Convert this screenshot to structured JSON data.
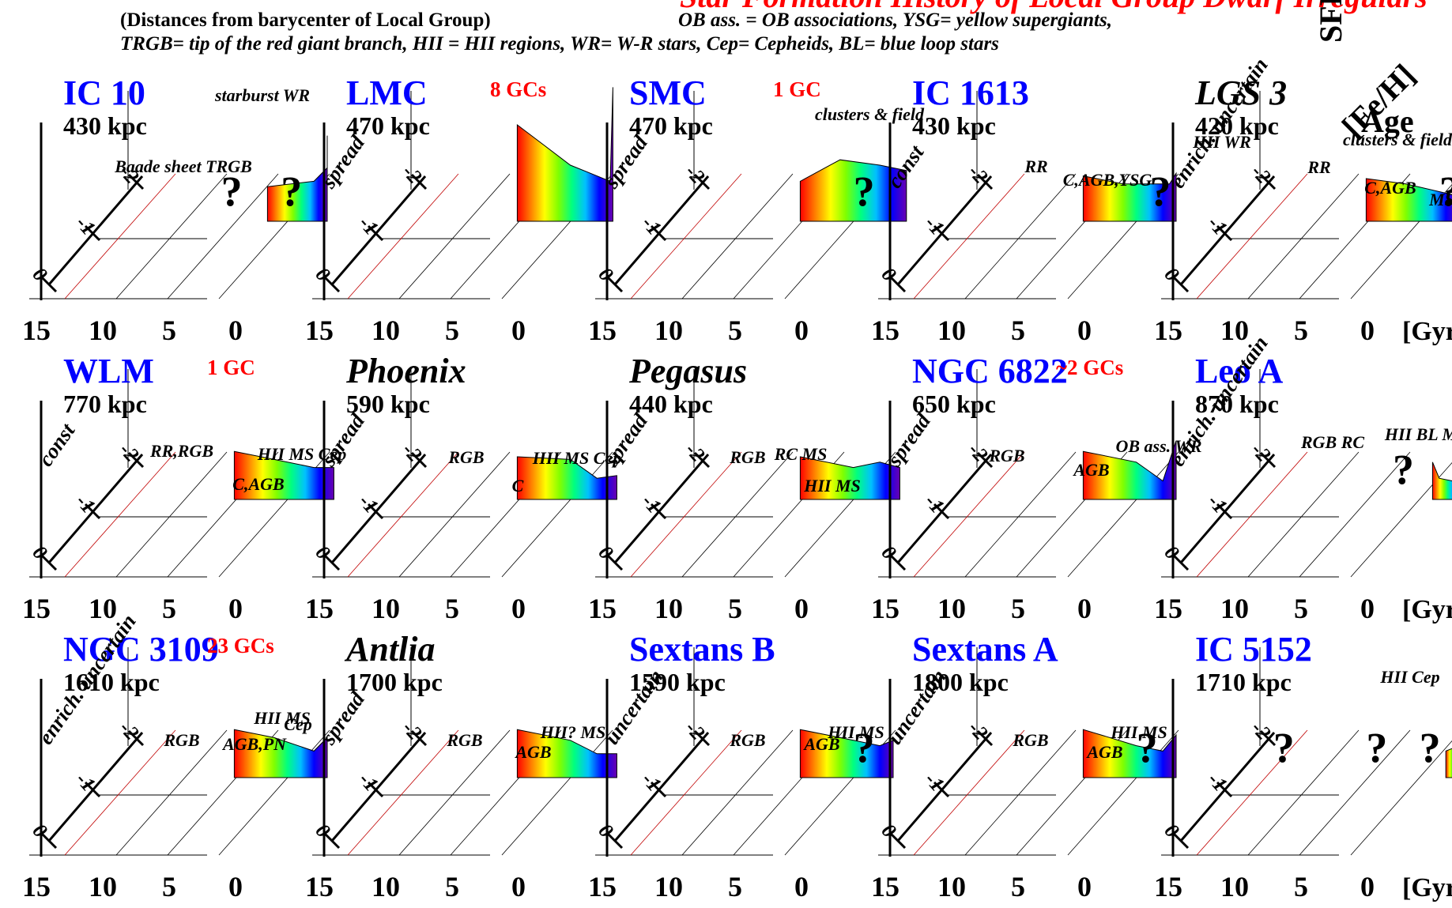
{
  "header": {
    "title": "Star Formation History of Local Group Dwarf Irregulars",
    "subtitle": "(Distances from barycenter of Local Group)",
    "legend_line1": "OB ass. = OB associations, YSG= yellow supergiants,",
    "legend_line2": "TRGB= tip of the red giant branch, HII = HII regions, WR= W-R stars, Cep= Cepheids, BL= blue loop stars"
  },
  "axis_legend": {
    "sfr": "SFR",
    "feh": "[Fe/H]",
    "age": "Age"
  },
  "colors": {
    "name_blue": "#0000ff",
    "gc_red": "#ff0000",
    "text": "#000000"
  },
  "chart_data": [
    {
      "type": "area",
      "name": "IC 10",
      "name_color": "blue",
      "distance": "430 kpc",
      "gc": "",
      "zlabel": "",
      "annotations": [
        {
          "text": "starburst WR"
        },
        {
          "text": "Baade sheet TRGB"
        }
      ],
      "sfr": [
        {
          "x": 4.5,
          "y": 0.7
        },
        {
          "x": 1,
          "y": 0.9
        },
        {
          "x": 0,
          "y": 1.4
        },
        {
          "x": 0,
          "y": 2.6
        }
      ],
      "question_marks": [
        {
          "age": 8
        },
        {
          "age": 3.5
        }
      ],
      "feh_ticks": [
        "0",
        "-1",
        "-2"
      ],
      "age_ticks": [
        "15",
        "10",
        "5",
        "0"
      ],
      "age_unit": "",
      "xlim": [
        15,
        0
      ],
      "ylim": [
        0,
        3
      ]
    },
    {
      "type": "area",
      "name": "LMC",
      "name_color": "blue",
      "distance": "470 kpc",
      "gc": "8 GCs",
      "zlabel": "spread",
      "annotations": [
        {
          "text": "clusters & field"
        }
      ],
      "sfr": [
        {
          "x": 7,
          "y": 3.0
        },
        {
          "x": 3,
          "y": 1.5
        },
        {
          "x": 0,
          "y": 0.9
        },
        {
          "x": -0.2,
          "y": 4.4
        }
      ],
      "question_marks": [],
      "feh_ticks": [
        "0",
        "-1",
        "-2"
      ],
      "age_ticks": [
        "15",
        "10",
        "5",
        "0"
      ],
      "age_unit": "",
      "xlim": [
        15,
        0
      ],
      "ylim": [
        0,
        5
      ]
    },
    {
      "type": "area",
      "name": "SMC",
      "name_color": "blue",
      "distance": "470 kpc",
      "gc": "1 GC",
      "zlabel": "spread",
      "annotations": [
        {
          "text": "clusters & field"
        }
      ],
      "sfr": [
        {
          "x": 7,
          "y": 0.9
        },
        {
          "x": 4,
          "y": 1.7
        },
        {
          "x": 1,
          "y": 1.5
        },
        {
          "x": -1,
          "y": 1.3
        }
      ],
      "question_marks": [
        {
          "age": 3
        }
      ],
      "feh_ticks": [
        "0",
        "-1",
        "-2"
      ],
      "age_ticks": [
        "15",
        "10",
        "5",
        "0"
      ],
      "age_unit": "",
      "xlim": [
        15,
        0
      ],
      "ylim": [
        0,
        3
      ]
    },
    {
      "type": "area",
      "name": "IC 1613",
      "name_color": "blue",
      "distance": "430 kpc",
      "gc": "",
      "zlabel": "const",
      "annotations": [
        {
          "text": "RR"
        },
        {
          "text": "C,AGB,YSG"
        },
        {
          "text": "HII WR"
        }
      ],
      "sfr": [
        {
          "x": 7,
          "y": 1.1
        },
        {
          "x": 4,
          "y": 0.8
        },
        {
          "x": 0.5,
          "y": 0.8
        },
        {
          "x": 0,
          "y": 1.2
        }
      ],
      "question_marks": [
        {
          "age": 2
        }
      ],
      "feh_ticks": [
        "0",
        "-1",
        "-2"
      ],
      "age_ticks": [
        "15",
        "10",
        "5",
        "0"
      ],
      "age_unit": "",
      "xlim": [
        15,
        0
      ],
      "ylim": [
        0,
        3
      ]
    },
    {
      "type": "area",
      "name": "LGS 3",
      "name_color": "black",
      "distance": "420 kpc",
      "gc": "",
      "zlabel": "enrich. uncertain",
      "annotations": [
        {
          "text": "RR"
        },
        {
          "text": "C,AGB"
        },
        {
          "text": "MS"
        }
      ],
      "sfr": [
        {
          "x": 7,
          "y": 1.0
        },
        {
          "x": 4,
          "y": 0.8
        },
        {
          "x": 0.5,
          "y": 0.4
        },
        {
          "x": 0,
          "y": 0.2
        }
      ],
      "question_marks": [
        {
          "age": 1.5
        }
      ],
      "feh_ticks": [
        "0",
        "-1",
        "-2"
      ],
      "age_ticks": [
        "15",
        "10",
        "5",
        "0"
      ],
      "age_unit": "[Gyr]",
      "xlim": [
        15,
        0
      ],
      "ylim": [
        0,
        3
      ]
    },
    {
      "type": "area",
      "name": "WLM",
      "name_color": "blue",
      "distance": "770 kpc",
      "gc": "1 GC",
      "zlabel": "const",
      "annotations": [
        {
          "text": "RR,RGB"
        },
        {
          "text": "C,AGB"
        },
        {
          "text": "HII MS Cep"
        }
      ],
      "sfr": [
        {
          "x": 7,
          "y": 1.2
        },
        {
          "x": 3,
          "y": 0.8
        },
        {
          "x": 1,
          "y": 0.6
        },
        {
          "x": -0.5,
          "y": 0.6
        }
      ],
      "question_marks": [],
      "feh_ticks": [
        "0",
        "-1",
        "-2"
      ],
      "age_ticks": [
        "15",
        "10",
        "5",
        "0"
      ],
      "age_unit": "",
      "xlim": [
        15,
        0
      ],
      "ylim": [
        0,
        3
      ]
    },
    {
      "type": "area",
      "name": "Phoenix",
      "name_color": "black",
      "distance": "590 kpc",
      "gc": "",
      "zlabel": "spread",
      "annotations": [
        {
          "text": "RGB"
        },
        {
          "text": "C"
        },
        {
          "text": "HII MS Cep"
        }
      ],
      "sfr": [
        {
          "x": 7,
          "y": 1.0
        },
        {
          "x": 3,
          "y": 0.9
        },
        {
          "x": 1,
          "y": 0.2
        },
        {
          "x": -0.5,
          "y": 0.3
        }
      ],
      "question_marks": [],
      "feh_ticks": [
        "0",
        "-1",
        "-2"
      ],
      "age_ticks": [
        "15",
        "10",
        "5",
        "0"
      ],
      "age_unit": "",
      "xlim": [
        15,
        0
      ],
      "ylim": [
        0,
        3
      ]
    },
    {
      "type": "area",
      "name": "Pegasus",
      "name_color": "black",
      "distance": "440 kpc",
      "gc": "",
      "zlabel": "spread",
      "annotations": [
        {
          "text": "RGB"
        },
        {
          "text": "RC MS"
        },
        {
          "text": "HII MS"
        }
      ],
      "sfr": [
        {
          "x": 7,
          "y": 1.0
        },
        {
          "x": 3,
          "y": 0.6
        },
        {
          "x": 1,
          "y": 0.8
        },
        {
          "x": -0.5,
          "y": 0.6
        }
      ],
      "question_marks": [],
      "feh_ticks": [
        "0",
        "-1",
        "-2"
      ],
      "age_ticks": [
        "15",
        "10",
        "5",
        "0"
      ],
      "age_unit": "",
      "xlim": [
        15,
        0
      ],
      "ylim": [
        0,
        3
      ]
    },
    {
      "type": "area",
      "name": "NGC 6822",
      "name_color": "blue",
      "distance": "650 kpc",
      "gc": "~2 GCs",
      "zlabel": "spread",
      "annotations": [
        {
          "text": "RGB"
        },
        {
          "text": "AGB"
        },
        {
          "text": "OB ass. WR"
        }
      ],
      "sfr": [
        {
          "x": 7,
          "y": 1.2
        },
        {
          "x": 3,
          "y": 0.8
        },
        {
          "x": 1,
          "y": 0.1
        },
        {
          "x": 0,
          "y": 1.6
        }
      ],
      "question_marks": [],
      "feh_ticks": [
        "0",
        "-1",
        "-2"
      ],
      "age_ticks": [
        "15",
        "10",
        "5",
        "0"
      ],
      "age_unit": "",
      "xlim": [
        15,
        0
      ],
      "ylim": [
        0,
        3
      ]
    },
    {
      "type": "area",
      "name": "Leo A",
      "name_color": "blue",
      "distance": "870 kpc",
      "gc": "",
      "zlabel": "enrich. uncertain",
      "annotations": [
        {
          "text": "RGB RC"
        },
        {
          "text": "HII BL MS"
        }
      ],
      "sfr": [
        {
          "x": 2,
          "y": 0.8
        },
        {
          "x": 1.5,
          "y": 0.2
        },
        {
          "x": 0.5,
          "y": 0.1
        },
        {
          "x": 0,
          "y": 1.2
        }
      ],
      "question_marks": [
        {
          "age": 5
        }
      ],
      "feh_ticks": [
        "0",
        "-1",
        "-2"
      ],
      "age_ticks": [
        "15",
        "10",
        "5",
        "0"
      ],
      "age_unit": "[Gyr]",
      "xlim": [
        15,
        0
      ],
      "ylim": [
        0,
        3
      ]
    },
    {
      "type": "area",
      "name": "NGC 3109",
      "name_color": "blue",
      "distance": "1610 kpc",
      "gc": "23 GCs",
      "zlabel": "enrich. uncertain",
      "annotations": [
        {
          "text": "RGB"
        },
        {
          "text": "AGB,PN"
        },
        {
          "text": "Cep"
        },
        {
          "text": "HII MS"
        }
      ],
      "sfr": [
        {
          "x": 7,
          "y": 1.2
        },
        {
          "x": 4,
          "y": 0.9
        },
        {
          "x": 1,
          "y": 0.4
        },
        {
          "x": 0,
          "y": 0.9
        }
      ],
      "question_marks": [],
      "feh_ticks": [
        "0",
        "-1",
        "-2"
      ],
      "age_ticks": [
        "15",
        "10",
        "5",
        "0"
      ],
      "age_unit": "",
      "xlim": [
        15,
        0
      ],
      "ylim": [
        0,
        3
      ]
    },
    {
      "type": "area",
      "name": "Antlia",
      "name_color": "black",
      "distance": "1700 kpc",
      "gc": "",
      "zlabel": "spread",
      "annotations": [
        {
          "text": "RGB"
        },
        {
          "text": "AGB"
        },
        {
          "text": "HII? MS"
        }
      ],
      "sfr": [
        {
          "x": 7,
          "y": 1.2
        },
        {
          "x": 3,
          "y": 0.8
        },
        {
          "x": 1,
          "y": 0.3
        },
        {
          "x": -0.5,
          "y": 0.3
        }
      ],
      "question_marks": [],
      "feh_ticks": [
        "0",
        "-1",
        "-2"
      ],
      "age_ticks": [
        "15",
        "10",
        "5",
        "0"
      ],
      "age_unit": "",
      "xlim": [
        15,
        0
      ],
      "ylim": [
        0,
        3
      ]
    },
    {
      "type": "area",
      "name": "Sextans B",
      "name_color": "blue",
      "distance": "1590 kpc",
      "gc": "",
      "zlabel": "uncertain",
      "annotations": [
        {
          "text": "RGB"
        },
        {
          "text": "AGB"
        },
        {
          "text": "HII MS"
        }
      ],
      "sfr": [
        {
          "x": 7,
          "y": 1.2
        },
        {
          "x": 3,
          "y": 0.8
        },
        {
          "x": 1,
          "y": 0.6
        },
        {
          "x": 0,
          "y": 0.8
        }
      ],
      "question_marks": [
        {
          "age": 3
        }
      ],
      "feh_ticks": [
        "0",
        "-1",
        "-2"
      ],
      "age_ticks": [
        "15",
        "10",
        "5",
        "0"
      ],
      "age_unit": "",
      "xlim": [
        15,
        0
      ],
      "ylim": [
        0,
        3
      ]
    },
    {
      "type": "area",
      "name": "Sextans A",
      "name_color": "blue",
      "distance": "1800 kpc",
      "gc": "",
      "zlabel": "uncertain",
      "annotations": [
        {
          "text": "RGB"
        },
        {
          "text": "AGB"
        },
        {
          "text": "HII MS"
        }
      ],
      "sfr": [
        {
          "x": 7,
          "y": 1.2
        },
        {
          "x": 3,
          "y": 0.6
        },
        {
          "x": 1,
          "y": 0.4
        },
        {
          "x": 0,
          "y": 1.0
        }
      ],
      "question_marks": [
        {
          "age": 3
        }
      ],
      "feh_ticks": [
        "0",
        "-1",
        "-2"
      ],
      "age_ticks": [
        "15",
        "10",
        "5",
        "0"
      ],
      "age_unit": "",
      "xlim": [
        15,
        0
      ],
      "ylim": [
        0,
        3
      ]
    },
    {
      "type": "area",
      "name": "IC 5152",
      "name_color": "blue",
      "distance": "1710 kpc",
      "gc": "",
      "zlabel": "",
      "annotations": [
        {
          "text": "HII Cep"
        }
      ],
      "sfr": [
        {
          "x": 1,
          "y": 0.4
        },
        {
          "x": 0,
          "y": 0.6
        }
      ],
      "question_marks": [
        {
          "age": 14
        },
        {
          "age": 7
        },
        {
          "age": 3
        }
      ],
      "feh_ticks": [
        "0",
        "-1",
        "-2"
      ],
      "age_ticks": [
        "15",
        "10",
        "5",
        "0"
      ],
      "age_unit": "[Gyr]",
      "xlim": [
        15,
        0
      ],
      "ylim": [
        0,
        3
      ]
    }
  ]
}
